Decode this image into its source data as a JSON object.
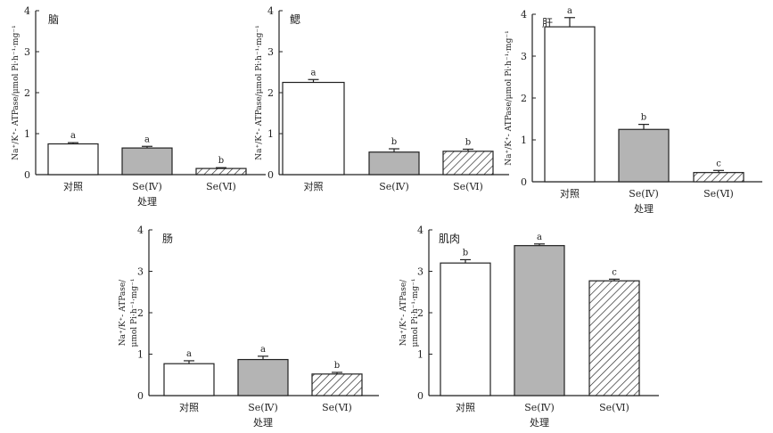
{
  "hatch_pattern": "diagonal",
  "colors": {
    "axis": "#222222",
    "bar_control": "#ffffff",
    "bar_se4": "#b4b4b4",
    "bar_se6_stroke": "#222222"
  },
  "chart_data": [
    {
      "type": "bar",
      "title": "脑",
      "categories": [
        "对照",
        "Se(Ⅳ)",
        "Se(Ⅵ)"
      ],
      "values": [
        0.75,
        0.65,
        0.15
      ],
      "errors": [
        0.03,
        0.04,
        0.02
      ],
      "significance": [
        "a",
        "a",
        "b"
      ],
      "fills": [
        "white",
        "gray",
        "hatch"
      ],
      "xlabel": "处理",
      "ylabel": "Na⁺/K⁺- ATPase/μmol Pi·h⁻¹·mg⁻¹",
      "ylim": [
        0,
        4
      ],
      "yticks": [
        0,
        1,
        2,
        3,
        4
      ]
    },
    {
      "type": "bar",
      "title": "鳃",
      "categories": [
        "对照",
        "Se(Ⅳ)",
        "Se(Ⅵ)"
      ],
      "values": [
        2.25,
        0.55,
        0.57
      ],
      "errors": [
        0.07,
        0.08,
        0.05
      ],
      "significance": [
        "a",
        "b",
        "b"
      ],
      "fills": [
        "white",
        "gray",
        "hatch"
      ],
      "xlabel": "",
      "ylabel": "Na⁺/K⁺- ATPase/μmol Pi·h⁻¹·mg⁻¹",
      "ylim": [
        0,
        4
      ],
      "yticks": [
        0,
        1,
        2,
        3,
        4
      ]
    },
    {
      "type": "bar",
      "title": "肝",
      "categories": [
        "对照",
        "Se(Ⅳ)",
        "Se(Ⅵ)"
      ],
      "values": [
        3.7,
        1.25,
        0.22
      ],
      "errors": [
        0.22,
        0.12,
        0.05
      ],
      "significance": [
        "a",
        "b",
        "c"
      ],
      "fills": [
        "white",
        "gray",
        "hatch"
      ],
      "xlabel": "处理",
      "ylabel": "Na⁺/K⁺- ATPase/μmol Pi·h⁻¹·mg⁻¹",
      "ylim": [
        0,
        4
      ],
      "yticks": [
        0,
        1,
        2,
        3,
        4
      ]
    },
    {
      "type": "bar",
      "title": "肠",
      "categories": [
        "对照",
        "Se(Ⅳ)",
        "Se(Ⅵ)"
      ],
      "values": [
        0.77,
        0.87,
        0.52
      ],
      "errors": [
        0.07,
        0.08,
        0.04
      ],
      "significance": [
        "a",
        "a",
        "b"
      ],
      "fills": [
        "white",
        "gray",
        "hatch"
      ],
      "xlabel": "处理",
      "ylabel": [
        "Na⁺/K⁺- ATPase/",
        "μmol Pi·h⁻¹·mg⁻¹"
      ],
      "ylim": [
        0,
        4
      ],
      "yticks": [
        0,
        1,
        2,
        3,
        4
      ]
    },
    {
      "type": "bar",
      "title": "肌肉",
      "categories": [
        "对照",
        "Se(Ⅳ)",
        "Se(Ⅵ)"
      ],
      "values": [
        3.2,
        3.62,
        2.77
      ],
      "errors": [
        0.08,
        0.04,
        0.04
      ],
      "significance": [
        "b",
        "a",
        "c"
      ],
      "fills": [
        "white",
        "gray",
        "hatch"
      ],
      "xlabel": "处理",
      "ylabel": [
        "Na⁺/K⁺- ATPase/",
        "μmol Pi·h⁻¹·mg⁻¹"
      ],
      "ylim": [
        0,
        4
      ],
      "yticks": [
        0,
        1,
        2,
        3,
        4
      ]
    }
  ]
}
